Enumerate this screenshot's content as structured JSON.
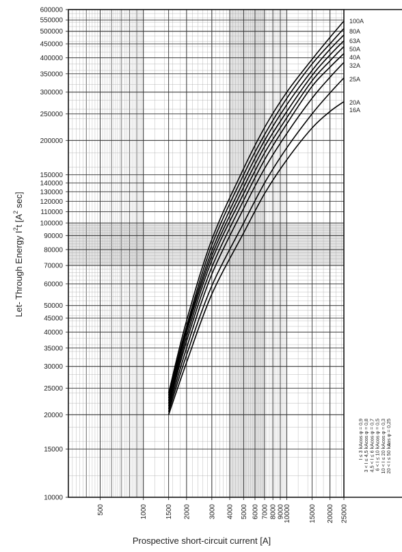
{
  "chart_data": {
    "type": "line",
    "xlabel": "Prospective short-circuit current [A]",
    "ylabel_parts": [
      "Let- Through Energy I",
      "t [A",
      " sec]"
    ],
    "ylabel_superscript": "2",
    "x_scale": "log",
    "y_scale": "log",
    "xlim": [
      300,
      25000
    ],
    "ylim": [
      10000,
      600000
    ],
    "x_ticks": [
      500,
      1000,
      1500,
      2000,
      3000,
      4000,
      5000,
      6000,
      7000,
      8000,
      9000,
      10000,
      15000,
      20000,
      25000
    ],
    "y_ticks": [
      10000,
      15000,
      20000,
      25000,
      30000,
      35000,
      40000,
      45000,
      50000,
      60000,
      70000,
      80000,
      90000,
      100000,
      110000,
      120000,
      130000,
      140000,
      150000,
      200000,
      250000,
      300000,
      350000,
      400000,
      450000,
      500000,
      550000,
      600000
    ],
    "grid": true,
    "shaded_regions": [
      {
        "x": [
          4000,
          7000
        ],
        "y": [
          10000,
          600000
        ]
      },
      {
        "x": [
          300,
          25000
        ],
        "y": [
          70000,
          100000
        ]
      }
    ],
    "series": [
      {
        "name": "100A",
        "x": [
          1500,
          2000,
          3000,
          5000,
          7000,
          10000,
          15000,
          20000,
          25000
        ],
        "y": [
          24000,
          44000,
          87000,
          158000,
          223000,
          300000,
          395000,
          475000,
          545000
        ]
      },
      {
        "name": "80A",
        "x": [
          1500,
          2000,
          3000,
          5000,
          7000,
          10000,
          15000,
          20000,
          25000
        ],
        "y": [
          23500,
          42000,
          83000,
          150000,
          210000,
          285000,
          380000,
          450000,
          512000
        ]
      },
      {
        "name": "63A",
        "x": [
          1500,
          2000,
          3000,
          5000,
          7000,
          10000,
          15000,
          20000,
          25000
        ],
        "y": [
          23000,
          41000,
          79000,
          142000,
          200000,
          270000,
          360000,
          430000,
          485000
        ]
      },
      {
        "name": "50A",
        "x": [
          1500,
          2000,
          3000,
          5000,
          7000,
          10000,
          15000,
          20000,
          25000
        ],
        "y": [
          22500,
          40000,
          76000,
          135000,
          190000,
          255000,
          345000,
          410000,
          462000
        ]
      },
      {
        "name": "40A",
        "x": [
          1500,
          2000,
          3000,
          5000,
          7000,
          10000,
          15000,
          20000,
          25000
        ],
        "y": [
          22000,
          38500,
          73000,
          128000,
          180000,
          242000,
          330000,
          390000,
          440000
        ]
      },
      {
        "name": "32A",
        "x": [
          1500,
          2000,
          3000,
          5000,
          7000,
          10000,
          15000,
          20000,
          25000
        ],
        "y": [
          21500,
          37000,
          69000,
          121000,
          170000,
          230000,
          315000,
          370000,
          415000
        ]
      },
      {
        "name": "25A",
        "x": [
          1500,
          2000,
          3000,
          5000,
          7000,
          10000,
          15000,
          20000,
          25000
        ],
        "y": [
          21000,
          35000,
          65000,
          113000,
          158000,
          212000,
          285000,
          340000,
          385000
        ]
      },
      {
        "name": "20A",
        "x": [
          1500,
          2000,
          3000,
          5000,
          7000,
          10000,
          15000,
          20000,
          25000
        ],
        "y": [
          20500,
          33000,
          59000,
          100000,
          140000,
          188000,
          250000,
          298000,
          338000
        ]
      },
      {
        "name": "16A",
        "x": [
          1500,
          2000,
          3000,
          5000,
          7000,
          10000,
          15000,
          20000,
          25000
        ],
        "y": [
          20000,
          31000,
          55000,
          92000,
          128000,
          170000,
          222000,
          255000,
          277000
        ]
      }
    ],
    "legend_placement": "right",
    "legend_labels": [
      "100A",
      "80A",
      "63A",
      "50A",
      "40A",
      "32A",
      "25A",
      "20A",
      "16A"
    ],
    "curve_label_text": "16A",
    "side_table": {
      "rows": [
        {
          "range": "I  ≤   3 kA",
          "pf": "cos φ = 0,9"
        },
        {
          "range": "3 < I  ≤ 4,5 kA",
          "pf": "cos φ = 0,8"
        },
        {
          "range": "4,5 < I  ≤   6 kA",
          "pf": "cos φ = 0,7"
        },
        {
          "range": "6 < I  ≤  10 kA",
          "pf": "cos φ = 0,5"
        },
        {
          "range": "10 < I  ≤  20 kA",
          "pf": "cos φ = 0,3"
        },
        {
          "range": "20 < I  ≤  50 kA",
          "pf": "cos φ = 0,25"
        }
      ]
    }
  }
}
